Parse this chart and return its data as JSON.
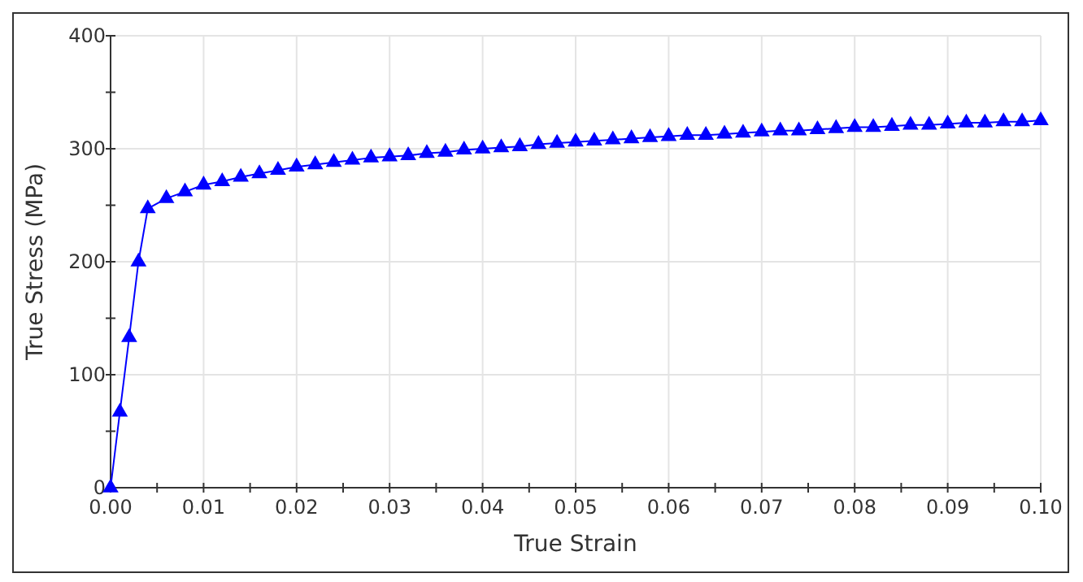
{
  "chart_data": {
    "type": "line",
    "xlabel": "True Strain",
    "ylabel": "True Stress (MPa)",
    "x": [
      0,
      0.001,
      0.002,
      0.003,
      0.004,
      0.006,
      0.008,
      0.01,
      0.012,
      0.014,
      0.016,
      0.018,
      0.02,
      0.022,
      0.024,
      0.026,
      0.028,
      0.03,
      0.032,
      0.034,
      0.036,
      0.038,
      0.04,
      0.042,
      0.044,
      0.046,
      0.048,
      0.05,
      0.052,
      0.054,
      0.056,
      0.058,
      0.06,
      0.062,
      0.064,
      0.066,
      0.068,
      0.07,
      0.072,
      0.074,
      0.076,
      0.078,
      0.08,
      0.082,
      0.084,
      0.086,
      0.088,
      0.09,
      0.092,
      0.094,
      0.096,
      0.098,
      0.1
    ],
    "series": [
      {
        "color": "#0000ff",
        "values": [
          0,
          67,
          133,
          200,
          247,
          256,
          262,
          268,
          271,
          275,
          278,
          281,
          284,
          286,
          288,
          290,
          292,
          293,
          294,
          296,
          297,
          299,
          300,
          301,
          302,
          304,
          305,
          306,
          307,
          308,
          309,
          310,
          311,
          312,
          312,
          313,
          314,
          315,
          316,
          316,
          317,
          318,
          319,
          319,
          320,
          321,
          321,
          322,
          323,
          323,
          324,
          324,
          325
        ]
      }
    ],
    "xlim": [
      0,
      0.1
    ],
    "xticks": [
      {
        "value": 0,
        "label": "0.00"
      },
      {
        "value": 0.005,
        "label": null
      },
      {
        "value": 0.01,
        "label": "0.01"
      },
      {
        "value": 0.015,
        "label": null
      },
      {
        "value": 0.02,
        "label": "0.02"
      },
      {
        "value": 0.025,
        "label": null
      },
      {
        "value": 0.03,
        "label": "0.03"
      },
      {
        "value": 0.035,
        "label": null
      },
      {
        "value": 0.04,
        "label": "0.04"
      },
      {
        "value": 0.045,
        "label": null
      },
      {
        "value": 0.05,
        "label": "0.05"
      },
      {
        "value": 0.055,
        "label": null
      },
      {
        "value": 0.06,
        "label": "0.06"
      },
      {
        "value": 0.065,
        "label": null
      },
      {
        "value": 0.07,
        "label": "0.07"
      },
      {
        "value": 0.075,
        "label": null
      },
      {
        "value": 0.08,
        "label": "0.08"
      },
      {
        "value": 0.085,
        "label": null
      },
      {
        "value": 0.09,
        "label": "0.09"
      },
      {
        "value": 0.095,
        "label": null
      },
      {
        "value": 0.1,
        "label": "0.10"
      }
    ],
    "ylim": [
      0,
      400
    ],
    "yticks": [
      0,
      {
        "value": 50,
        "label": null
      },
      100,
      {
        "value": 150,
        "label": null
      },
      200,
      {
        "value": 250,
        "label": null
      },
      300,
      {
        "value": 350,
        "label": null
      },
      400
    ],
    "grid": true,
    "marker": "triangle",
    "line_style": "solid"
  }
}
